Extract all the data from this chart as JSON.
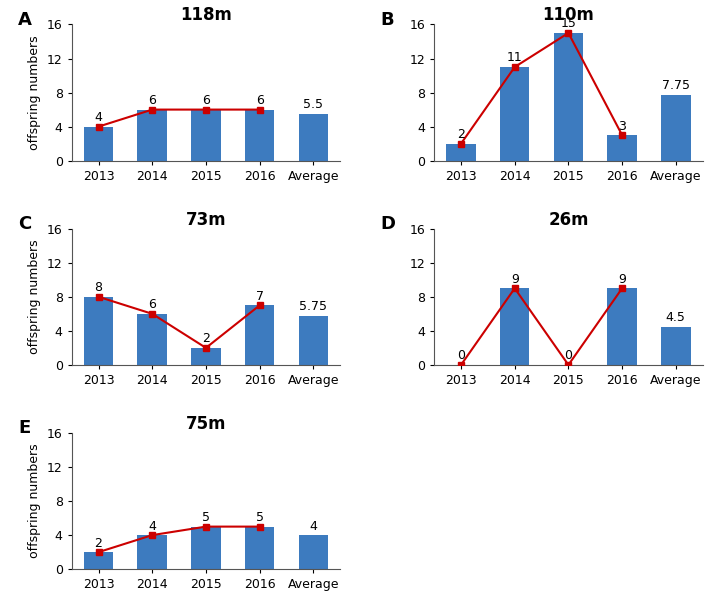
{
  "panels": [
    {
      "label": "A",
      "title": "118m",
      "categories": [
        "2013",
        "2014",
        "2015",
        "2016",
        "Average"
      ],
      "bar_values": [
        4,
        6,
        6,
        6,
        5.5
      ],
      "line_values": [
        4,
        6,
        6,
        6
      ],
      "avg_value": 5.5,
      "bar_color": "#3d7bbf",
      "line_color": "#cc0000",
      "ylim": [
        0,
        16
      ],
      "yticks": [
        0,
        4,
        8,
        12,
        16
      ]
    },
    {
      "label": "B",
      "title": "110m",
      "categories": [
        "2013",
        "2014",
        "2015",
        "2016",
        "Average"
      ],
      "bar_values": [
        2,
        11,
        15,
        3,
        7.75
      ],
      "line_values": [
        2,
        11,
        15,
        3
      ],
      "avg_value": 7.75,
      "bar_color": "#3d7bbf",
      "line_color": "#cc0000",
      "ylim": [
        0,
        16
      ],
      "yticks": [
        0,
        4,
        8,
        12,
        16
      ]
    },
    {
      "label": "C",
      "title": "73m",
      "categories": [
        "2013",
        "2014",
        "2015",
        "2016",
        "Average"
      ],
      "bar_values": [
        8,
        6,
        2,
        7,
        5.75
      ],
      "line_values": [
        8,
        6,
        2,
        7
      ],
      "avg_value": 5.75,
      "bar_color": "#3d7bbf",
      "line_color": "#cc0000",
      "ylim": [
        0,
        16
      ],
      "yticks": [
        0,
        4,
        8,
        12,
        16
      ]
    },
    {
      "label": "D",
      "title": "26m",
      "categories": [
        "2013",
        "2014",
        "2015",
        "2016",
        "Average"
      ],
      "bar_values": [
        0,
        9,
        0,
        9,
        4.5
      ],
      "line_values": [
        0,
        9,
        0,
        9
      ],
      "avg_value": 4.5,
      "bar_color": "#3d7bbf",
      "line_color": "#cc0000",
      "ylim": [
        0,
        16
      ],
      "yticks": [
        0,
        4,
        8,
        12,
        16
      ]
    },
    {
      "label": "E",
      "title": "75m",
      "categories": [
        "2013",
        "2014",
        "2015",
        "2016",
        "Average"
      ],
      "bar_values": [
        2,
        4,
        5,
        5,
        4
      ],
      "line_values": [
        2,
        4,
        5,
        5
      ],
      "avg_value": 4,
      "bar_color": "#3d7bbf",
      "line_color": "#cc0000",
      "ylim": [
        0,
        16
      ],
      "yticks": [
        0,
        4,
        8,
        12,
        16
      ]
    }
  ],
  "ylabel": "offspring numbers",
  "background_color": "#ffffff",
  "label_fontsize": 13,
  "title_fontsize": 12,
  "tick_fontsize": 9,
  "annot_fontsize": 9,
  "ylabel_fontsize": 9
}
